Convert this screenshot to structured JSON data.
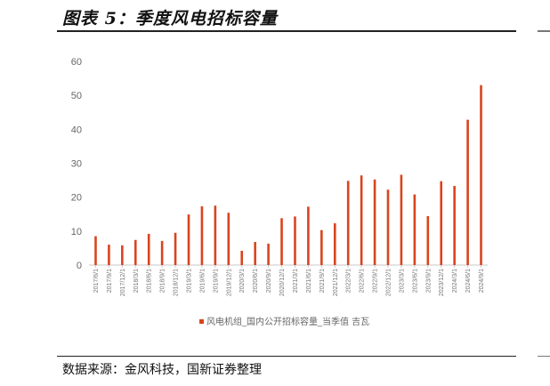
{
  "header": {
    "title": "图表 5：季度风电招标容量"
  },
  "footer": {
    "source": "数据来源：金风科技，国新证券整理"
  },
  "colors": {
    "bar": "#D9441E",
    "axis": "#c8c8c8",
    "text": "#666666"
  },
  "chart_data": {
    "type": "bar",
    "title": "",
    "xlabel": "",
    "ylabel": "",
    "ylim": [
      0,
      60
    ],
    "yticks": [
      0,
      10,
      20,
      30,
      40,
      50,
      60
    ],
    "legend_position": "bottom-center",
    "grid": false,
    "categories": [
      "2017/6/1",
      "2017/9/1",
      "2017/12/1",
      "2018/3/1",
      "2018/6/1",
      "2018/9/1",
      "2018/12/1",
      "2019/3/1",
      "2019/6/1",
      "2019/9/1",
      "2019/12/1",
      "2020/3/1",
      "2020/6/1",
      "2020/9/1",
      "2020/12/1",
      "2021/3/1",
      "2021/6/1",
      "2021/9/1",
      "2021/12/1",
      "2022/3/1",
      "2022/6/1",
      "2022/9/1",
      "2022/12/1",
      "2023/3/1",
      "2023/6/1",
      "2023/9/1",
      "2023/12/1",
      "2024/3/1",
      "2024/6/1",
      "2024/9/1"
    ],
    "series": [
      {
        "name": "风电机组_国内公开招标容量_当季值 吉瓦",
        "values": [
          8.5,
          6.0,
          5.8,
          7.4,
          9.2,
          7.1,
          9.5,
          14.9,
          17.3,
          17.5,
          15.4,
          4.2,
          6.8,
          6.3,
          13.8,
          14.3,
          17.2,
          10.3,
          12.3,
          24.8,
          26.4,
          25.2,
          22.2,
          26.6,
          20.8,
          14.4,
          24.7,
          23.3,
          42.8,
          53.0
        ]
      }
    ]
  }
}
